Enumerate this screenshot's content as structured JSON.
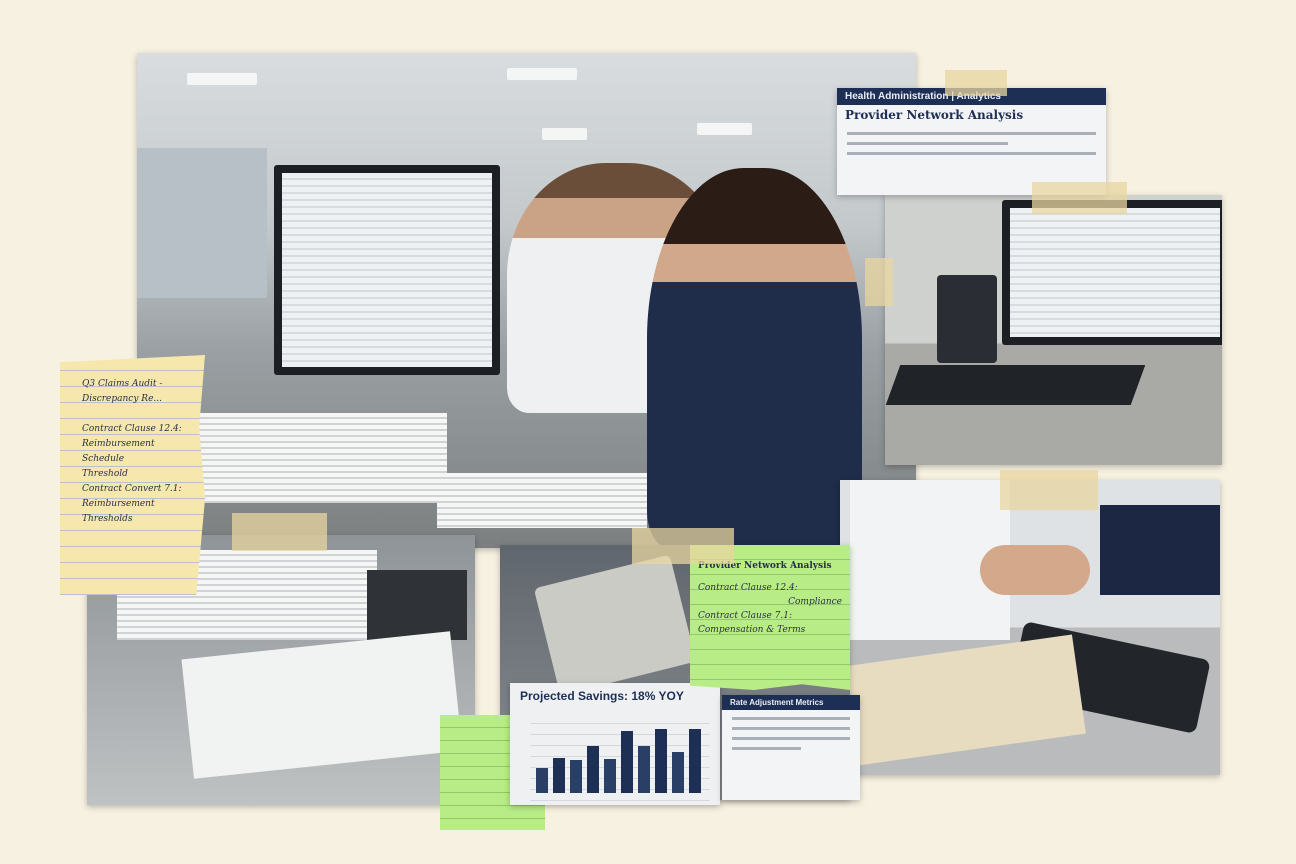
{
  "yellow_note": {
    "title": "Q3 Claims Audit - Discrepancy Re...",
    "lines": [
      "Contract Clause 12.4:",
      "Reimbursement",
      "Schedule",
      "Threshold",
      "Contract Convert 7.1:",
      "Reimbursement",
      "Thresholds"
    ]
  },
  "green_note": {
    "title": "Provider Network Analysis",
    "lines": [
      "Contract Clause 12.4:",
      "Compliance",
      "Contract Clause 7.1:",
      "Compensation & Terms"
    ]
  },
  "top_doc": {
    "header": "Health Administration | Analytics",
    "title": "Provider Network Analysis"
  },
  "savings_chart": {
    "title": "Projected Savings: 18% YOY"
  },
  "side_doc": {
    "header": "Rate Adjustment Metrics"
  },
  "chart_data": {
    "type": "bar",
    "title": "Projected Savings: 18% YOY",
    "relative_bar_levels": [
      0.32,
      0.45,
      0.42,
      0.6,
      0.44,
      0.8,
      0.6,
      0.82,
      0.52,
      0.82
    ],
    "bar_colors": [
      "#2a3f66",
      "#1e2f55"
    ]
  },
  "colors": {
    "background": "#f7f1e1",
    "navy": "#1e2f55",
    "yellow_note": "#f6e7ad",
    "green_note": "#b8ec86"
  }
}
